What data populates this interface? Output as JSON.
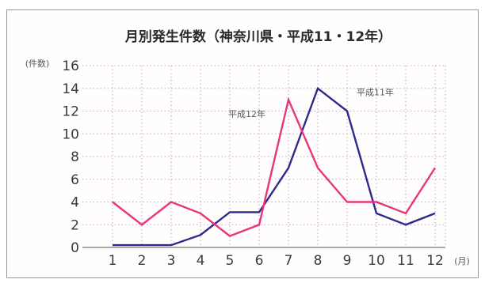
{
  "chart_data": {
    "type": "line",
    "title": "月別発生件数（神奈川県・平成11・12年）",
    "ylabel": "(件数)",
    "xlabel": "(月)",
    "categories": [
      "1",
      "2",
      "3",
      "4",
      "5",
      "6",
      "7",
      "8",
      "9",
      "10",
      "11",
      "12"
    ],
    "ylim": [
      0,
      16
    ],
    "yticks": [
      0,
      2,
      4,
      6,
      8,
      10,
      12,
      14,
      16
    ],
    "grid": true,
    "series": [
      {
        "name": "平成11年",
        "color": "#2e2a8c",
        "values": [
          0.2,
          0.2,
          0.2,
          1.1,
          3.1,
          3.1,
          7,
          14,
          12,
          3,
          2,
          3
        ]
      },
      {
        "name": "平成12年",
        "color": "#e8357c",
        "values": [
          4,
          2,
          4,
          3,
          1,
          2,
          13,
          7,
          4,
          4,
          3,
          7
        ]
      }
    ],
    "gridcolor": "#b9a7d6"
  }
}
